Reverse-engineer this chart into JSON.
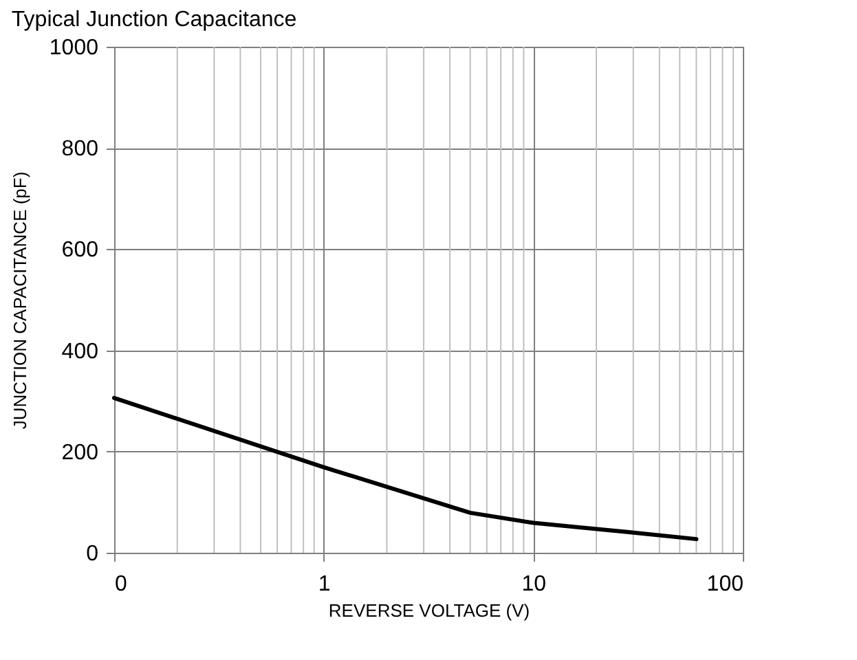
{
  "chart_data": {
    "type": "line",
    "title": "Typical Junction Capacitance",
    "xlabel": "REVERSE VOLTAGE (V)",
    "ylabel": "JUNCTION CAPACITANCE (pF)",
    "x": [
      0.1,
      1,
      5,
      10,
      28,
      60
    ],
    "series": [
      {
        "color": "#000000",
        "values": [
          306,
          169,
          79,
          59,
          41,
          27
        ]
      }
    ],
    "log": "x",
    "xlim": [
      0.1,
      100
    ],
    "xticks": [
      {
        "value": 0.1,
        "label": "0"
      },
      1,
      10,
      100
    ],
    "ylim": [
      0,
      1000
    ],
    "yticks": [
      0,
      200,
      400,
      600,
      800,
      1000
    ],
    "grid": true,
    "marker": "none",
    "line_style": "solid"
  }
}
